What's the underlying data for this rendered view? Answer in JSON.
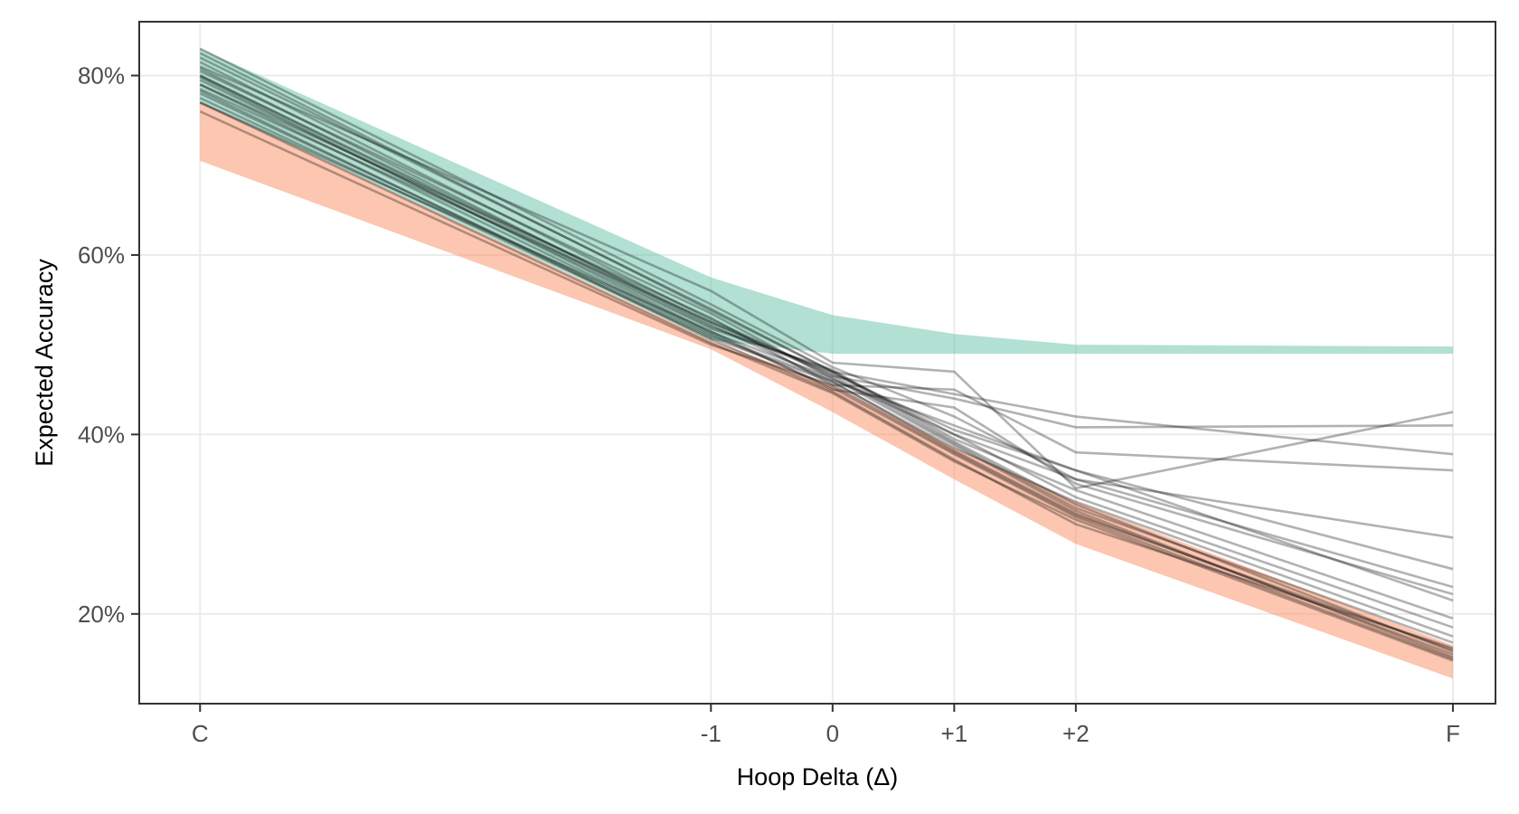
{
  "chart_data": {
    "type": "line",
    "xlabel": "Hoop Delta (Δ)",
    "ylabel": "Expected Accuracy",
    "x_categories": [
      "C",
      "-1",
      "0",
      "+1",
      "+2",
      "F"
    ],
    "x_positions": [
      -5.2,
      -1,
      0,
      1,
      2,
      5.1
    ],
    "xlim": [
      -5.7,
      5.45
    ],
    "ylim": [
      0.1,
      0.86
    ],
    "y_ticks": [
      0.2,
      0.4,
      0.6,
      0.8
    ],
    "y_tick_labels": [
      "20%",
      "40%",
      "60%",
      "80%"
    ],
    "grid": true,
    "legend": "none",
    "colors": {
      "green_band": "#66c2a5",
      "orange_band": "#fc8d62",
      "lines": "#000000",
      "grid": "#ebebeb",
      "panel_border": "#333333"
    },
    "bands": [
      {
        "color": "#66c2a5",
        "upper": [
          0.83,
          0.575,
          0.533,
          0.512,
          0.5,
          0.498
        ],
        "lower": [
          0.77,
          0.505,
          0.49,
          0.49,
          0.49,
          0.49
        ]
      },
      {
        "color": "#fc8d62",
        "upper": [
          0.77,
          0.505,
          0.455,
          0.385,
          0.325,
          0.165
        ],
        "lower": [
          0.705,
          0.495,
          0.425,
          0.35,
          0.278,
          0.128
        ]
      }
    ],
    "series": [
      {
        "values": [
          0.82,
          0.54,
          0.47,
          0.445,
          0.42,
          0.378
        ]
      },
      {
        "values": [
          0.8,
          0.525,
          0.465,
          0.44,
          0.408,
          0.41
        ]
      },
      {
        "values": [
          0.79,
          0.53,
          0.455,
          0.45,
          0.38,
          0.36
        ]
      },
      {
        "values": [
          0.81,
          0.56,
          0.48,
          0.47,
          0.34,
          0.425
        ]
      },
      {
        "values": [
          0.83,
          0.545,
          0.475,
          0.42,
          0.35,
          0.285
        ]
      },
      {
        "values": [
          0.78,
          0.51,
          0.46,
          0.41,
          0.36,
          0.25
        ]
      },
      {
        "values": [
          0.8,
          0.52,
          0.47,
          0.4,
          0.35,
          0.23
        ]
      },
      {
        "values": [
          0.77,
          0.515,
          0.45,
          0.43,
          0.345,
          0.222
        ]
      },
      {
        "values": [
          0.785,
          0.525,
          0.468,
          0.405,
          0.36,
          0.215
        ]
      },
      {
        "values": [
          0.795,
          0.518,
          0.472,
          0.395,
          0.338,
          0.195
        ]
      },
      {
        "values": [
          0.805,
          0.535,
          0.462,
          0.4,
          0.33,
          0.185
        ]
      },
      {
        "values": [
          0.775,
          0.508,
          0.458,
          0.385,
          0.325,
          0.175
        ]
      },
      {
        "values": [
          0.815,
          0.528,
          0.466,
          0.39,
          0.318,
          0.168
        ]
      },
      {
        "values": [
          0.76,
          0.5,
          0.455,
          0.38,
          0.31,
          0.16
        ]
      },
      {
        "values": [
          0.808,
          0.522,
          0.459,
          0.382,
          0.312,
          0.155
        ]
      },
      {
        "values": [
          0.79,
          0.512,
          0.452,
          0.378,
          0.308,
          0.15
        ]
      },
      {
        "values": [
          0.825,
          0.538,
          0.47,
          0.392,
          0.322,
          0.158
        ]
      },
      {
        "values": [
          0.783,
          0.506,
          0.448,
          0.372,
          0.3,
          0.162
        ]
      },
      {
        "values": [
          0.798,
          0.514,
          0.463,
          0.388,
          0.315,
          0.152
        ]
      },
      {
        "values": [
          0.77,
          0.502,
          0.446,
          0.37,
          0.305,
          0.148
        ]
      }
    ]
  }
}
